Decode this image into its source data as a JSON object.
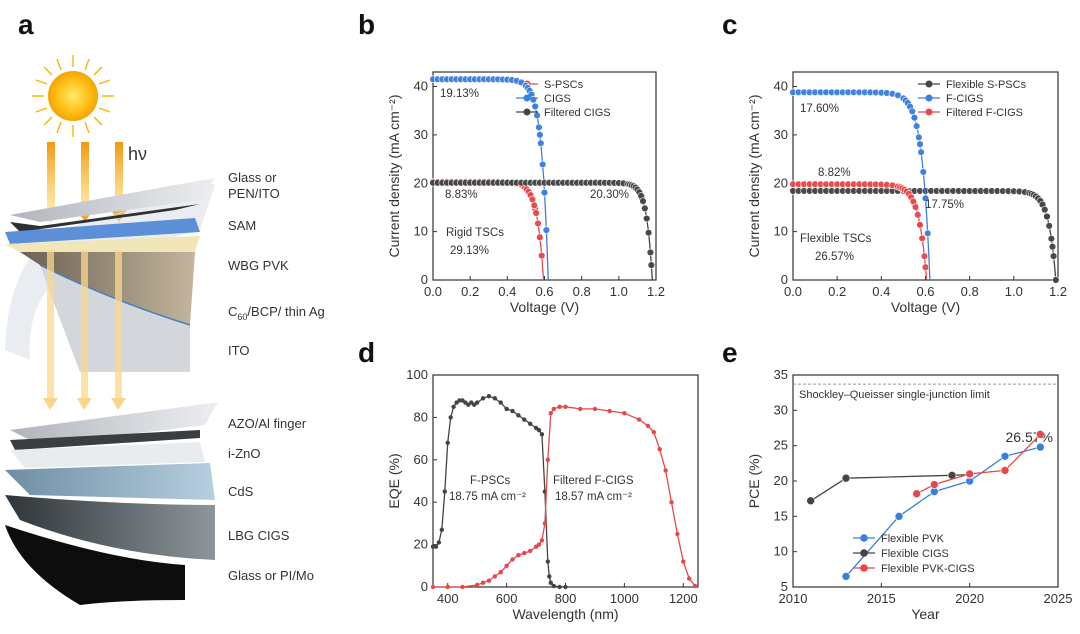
{
  "panels": {
    "a": "a",
    "b": "b",
    "c": "c",
    "d": "d",
    "e": "e"
  },
  "schematic": {
    "light_label": "hν",
    "layers": [
      "Glass or",
      "PEN/ITO",
      "SAM",
      "WBG PVK",
      "C60/BCP/ thin Ag",
      "ITO",
      "AZO/Al finger",
      "i-ZnO",
      "CdS",
      "LBG CIGS",
      "Glass or PI/Mo"
    ],
    "c60_main": "C",
    "c60_sub": "60",
    "c60_rest": "/BCP/ thin Ag"
  },
  "colors": {
    "red": "#e8474a",
    "blue": "#3a7fe0",
    "gray": "#444444"
  },
  "chart_data": [
    {
      "panel": "b",
      "type": "line",
      "xlabel": "Voltage (V)",
      "ylabel": "Current density (mA cm⁻²)",
      "xlim": [
        0,
        1.2
      ],
      "ylim": [
        0,
        43
      ],
      "xticks": [
        "0.0",
        "0.2",
        "0.4",
        "0.6",
        "0.8",
        "1.0",
        "1.2"
      ],
      "yticks": [
        "0",
        "10",
        "20",
        "30",
        "40"
      ],
      "legend": "top-right",
      "series": [
        {
          "name": "S-PSCs",
          "color": "red",
          "jsc": 20.3,
          "voc": 0.595,
          "n": 0.035
        },
        {
          "name": "CIGS",
          "color": "blue",
          "jsc": 41.5,
          "voc": 0.62,
          "n": 0.035
        },
        {
          "name": "Filtered CIGS",
          "color": "gray",
          "jsc": 20.1,
          "voc": 1.18,
          "n": 0.03
        }
      ],
      "annotations": [
        "19.13%",
        "8.83%",
        "20.30%",
        "Rigid TSCs",
        "29.13%"
      ]
    },
    {
      "panel": "c",
      "type": "line",
      "xlabel": "Voltage (V)",
      "ylabel": "Current density (mA cm⁻²)",
      "xlim": [
        0,
        1.2
      ],
      "ylim": [
        0,
        43
      ],
      "xticks": [
        "0.0",
        "0.2",
        "0.4",
        "0.6",
        "0.8",
        "1.0",
        "1.2"
      ],
      "yticks": [
        "0",
        "10",
        "20",
        "30",
        "40"
      ],
      "legend": "top-right",
      "series": [
        {
          "name": "Flexible S-PSCs",
          "color": "gray",
          "jsc": 18.4,
          "voc": 1.19,
          "n": 0.032
        },
        {
          "name": "F-CIGS",
          "color": "blue",
          "jsc": 38.8,
          "voc": 0.62,
          "n": 0.035
        },
        {
          "name": "Filtered F-CIGS",
          "color": "red",
          "jsc": 19.8,
          "voc": 0.605,
          "n": 0.035
        }
      ],
      "annotations": [
        "17.60%",
        "8.82%",
        "17.75%",
        "Flexible TSCs",
        "26.57%"
      ]
    },
    {
      "panel": "d",
      "type": "line",
      "xlabel": "Wavelength (nm)",
      "ylabel": "EQE (%)",
      "xlim": [
        350,
        1250
      ],
      "ylim": [
        0,
        100
      ],
      "xticks": [
        "400",
        "600",
        "800",
        "1000",
        "1200"
      ],
      "yticks": [
        "0",
        "20",
        "40",
        "60",
        "80",
        "100"
      ],
      "series": [
        {
          "name": "F-PSCs",
          "color": "gray",
          "x": [
            350,
            360,
            370,
            380,
            390,
            400,
            410,
            420,
            430,
            440,
            450,
            460,
            470,
            480,
            490,
            500,
            520,
            540,
            560,
            580,
            600,
            620,
            640,
            660,
            680,
            700,
            710,
            720,
            730,
            740,
            745,
            750,
            760,
            780,
            800
          ],
          "y": [
            19,
            19,
            21,
            27,
            45,
            68,
            80,
            85,
            87,
            88,
            88,
            87,
            86,
            87,
            86,
            87,
            89,
            90,
            89,
            87,
            84,
            83,
            81,
            79,
            77,
            75,
            74,
            72,
            45,
            12,
            5,
            2,
            0.5,
            0,
            0
          ]
        },
        {
          "name": "Filtered F-CIGS",
          "color": "red",
          "x": [
            350,
            400,
            450,
            500,
            520,
            540,
            560,
            580,
            600,
            620,
            640,
            660,
            680,
            700,
            710,
            720,
            730,
            740,
            750,
            760,
            780,
            800,
            850,
            900,
            950,
            1000,
            1050,
            1080,
            1100,
            1120,
            1140,
            1160,
            1180,
            1200,
            1220,
            1240
          ],
          "y": [
            0,
            0,
            0,
            1,
            2,
            3,
            5,
            7,
            10,
            13,
            15,
            16,
            17,
            19,
            20,
            22,
            30,
            60,
            82,
            84,
            85,
            85,
            84,
            84,
            83,
            82,
            79,
            76,
            73,
            65,
            55,
            40,
            25,
            12,
            4,
            0.5
          ]
        }
      ],
      "annotations": [
        "F-PSCs",
        "18.75 mA cm⁻²",
        "Filtered F-CIGS",
        "18.57 mA cm⁻²"
      ]
    },
    {
      "panel": "e",
      "type": "line",
      "xlabel": "Year",
      "ylabel": "PCE (%)",
      "xlim": [
        2010,
        2025
      ],
      "ylim": [
        5,
        35
      ],
      "xticks": [
        "2010",
        "2015",
        "2020",
        "2025"
      ],
      "yticks": [
        "5",
        "10",
        "15",
        "20",
        "25",
        "30",
        "35"
      ],
      "reference_line": {
        "y": 33.7,
        "label": "Shockley–Queisser single-junction limit"
      },
      "highlight": "26.57%",
      "legend": "bottom-right",
      "series": [
        {
          "name": "Flexible PVK",
          "color": "blue",
          "x": [
            2013,
            2016,
            2018,
            2020,
            2022,
            2024
          ],
          "y": [
            6.5,
            15.0,
            18.5,
            20.0,
            23.5,
            24.8
          ]
        },
        {
          "name": "Flexible CIGS",
          "color": "gray",
          "x": [
            2011,
            2013,
            2019,
            2020
          ],
          "y": [
            17.2,
            20.4,
            20.8,
            20.9
          ]
        },
        {
          "name": "Flexible PVK-CIGS",
          "color": "red",
          "x": [
            2017,
            2018,
            2020,
            2022,
            2024
          ],
          "y": [
            18.2,
            19.5,
            21.0,
            21.5,
            26.6
          ]
        }
      ]
    }
  ]
}
